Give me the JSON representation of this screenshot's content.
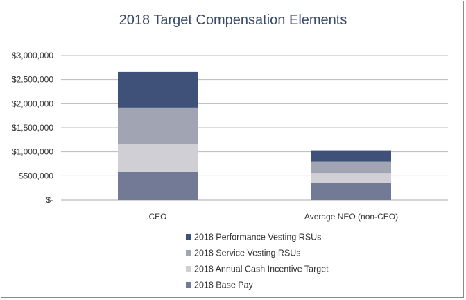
{
  "chart_data": {
    "type": "bar",
    "stacked": true,
    "title": "2018 Target Compensation Elements",
    "xlabel": "",
    "ylabel": "",
    "categories": [
      "CEO",
      "Average NEO (non-CEO)"
    ],
    "ylim": [
      0,
      3000000
    ],
    "yticks": [
      0,
      500000,
      1000000,
      1500000,
      2000000,
      2500000,
      3000000
    ],
    "ytick_labels": [
      "$-",
      "$500,000",
      "$1,000,000",
      "$1,500,000",
      "$2,000,000",
      "$2,500,000",
      "$3,000,000"
    ],
    "grid": true,
    "legend_position": "bottom",
    "series": [
      {
        "name": "2018 Base Pay",
        "color": "#727a96",
        "values": [
          590000,
          350000
        ]
      },
      {
        "name": "2018 Annual Cash Incentive Target",
        "color": "#cfcfd5",
        "values": [
          575000,
          210000
        ]
      },
      {
        "name": "2018 Service Vesting RSUs",
        "color": "#a1a4b3",
        "values": [
          755000,
          240000
        ]
      },
      {
        "name": "2018 Performance Vesting RSUs",
        "color": "#3f5079",
        "values": [
          750000,
          230000
        ]
      }
    ]
  }
}
